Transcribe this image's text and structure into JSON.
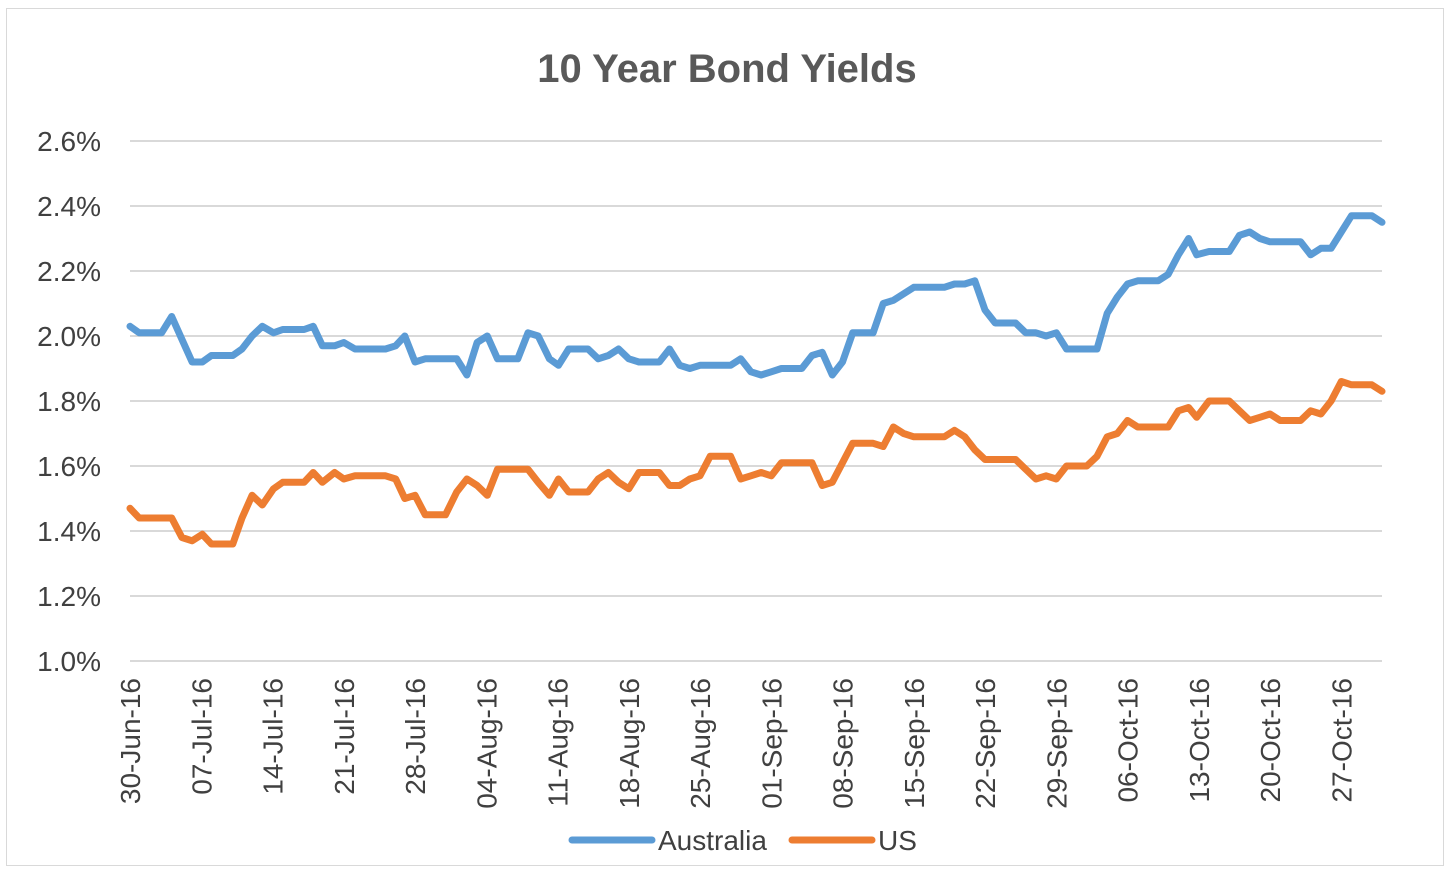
{
  "chart_data": {
    "type": "line",
    "title": "10 Year Bond Yields",
    "xlabel": "",
    "ylabel": "",
    "ylim": [
      1.0,
      2.6
    ],
    "y_ticks": [
      "1.0%",
      "1.2%",
      "1.4%",
      "1.6%",
      "1.8%",
      "2.0%",
      "2.2%",
      "2.4%",
      "2.6%"
    ],
    "y_tick_values": [
      1.0,
      1.2,
      1.4,
      1.6,
      1.8,
      2.0,
      2.2,
      2.4,
      2.6
    ],
    "x_ticks": [
      "30-Jun-16",
      "07-Jul-16",
      "14-Jul-16",
      "21-Jul-16",
      "28-Jul-16",
      "04-Aug-16",
      "11-Aug-16",
      "18-Aug-16",
      "25-Aug-16",
      "01-Sep-16",
      "08-Sep-16",
      "15-Sep-16",
      "22-Sep-16",
      "29-Sep-16",
      "06-Oct-16",
      "13-Oct-16",
      "20-Oct-16",
      "27-Oct-16"
    ],
    "x_tick_offsets_days": [
      0,
      7,
      14,
      21,
      28,
      35,
      42,
      49,
      56,
      63,
      70,
      77,
      84,
      91,
      98,
      105,
      112,
      119
    ],
    "x_range_days": [
      0,
      123
    ],
    "grid": true,
    "legend_position": "bottom",
    "series": [
      {
        "name": "Australia",
        "color": "#5b9bd5",
        "points": [
          [
            0,
            2.03
          ],
          [
            0.9,
            2.01
          ],
          [
            2.1,
            2.01
          ],
          [
            3.1,
            2.01
          ],
          [
            4.1,
            2.06
          ],
          [
            5.1,
            1.99
          ],
          [
            6.1,
            1.92
          ],
          [
            7.1,
            1.92
          ],
          [
            8.0,
            1.94
          ],
          [
            9.2,
            1.94
          ],
          [
            10.1,
            1.94
          ],
          [
            11.0,
            1.96
          ],
          [
            12.0,
            2.0
          ],
          [
            13.0,
            2.03
          ],
          [
            14.1,
            2.01
          ],
          [
            15.0,
            2.02
          ],
          [
            16.0,
            2.02
          ],
          [
            17.1,
            2.02
          ],
          [
            18.0,
            2.03
          ],
          [
            18.9,
            1.97
          ],
          [
            20.1,
            1.97
          ],
          [
            21.0,
            1.98
          ],
          [
            22.1,
            1.96
          ],
          [
            23.1,
            1.96
          ],
          [
            24.1,
            1.96
          ],
          [
            25.1,
            1.96
          ],
          [
            26.1,
            1.97
          ],
          [
            27.0,
            2.0
          ],
          [
            28.0,
            1.92
          ],
          [
            29.0,
            1.93
          ],
          [
            30.0,
            1.93
          ],
          [
            31.0,
            1.93
          ],
          [
            32.1,
            1.93
          ],
          [
            33.1,
            1.88
          ],
          [
            34.1,
            1.98
          ],
          [
            35.1,
            2.0
          ],
          [
            36.1,
            1.93
          ],
          [
            37.1,
            1.93
          ],
          [
            38.1,
            1.93
          ],
          [
            39.1,
            2.01
          ],
          [
            40.1,
            2.0
          ],
          [
            41.2,
            1.93
          ],
          [
            42.1,
            1.91
          ],
          [
            43.1,
            1.96
          ],
          [
            44.0,
            1.96
          ],
          [
            45.0,
            1.96
          ],
          [
            46.0,
            1.93
          ],
          [
            47.0,
            1.94
          ],
          [
            48.0,
            1.96
          ],
          [
            49.0,
            1.93
          ],
          [
            50.0,
            1.92
          ],
          [
            51.0,
            1.92
          ],
          [
            52.0,
            1.92
          ],
          [
            53.0,
            1.96
          ],
          [
            54.0,
            1.91
          ],
          [
            55.0,
            1.9
          ],
          [
            56.0,
            1.91
          ],
          [
            57.0,
            1.91
          ],
          [
            58.0,
            1.91
          ],
          [
            59.0,
            1.91
          ],
          [
            60.0,
            1.93
          ],
          [
            61.0,
            1.89
          ],
          [
            62.0,
            1.88
          ],
          [
            63.0,
            1.89
          ],
          [
            64.0,
            1.9
          ],
          [
            65.0,
            1.9
          ],
          [
            66.0,
            1.9
          ],
          [
            67.0,
            1.94
          ],
          [
            68.0,
            1.95
          ],
          [
            69.0,
            1.88
          ],
          [
            70.0,
            1.92
          ],
          [
            71.0,
            2.01
          ],
          [
            72.0,
            2.01
          ],
          [
            73.0,
            2.01
          ],
          [
            74.0,
            2.1
          ],
          [
            75.0,
            2.11
          ],
          [
            76.0,
            2.13
          ],
          [
            77.0,
            2.15
          ],
          [
            78.0,
            2.15
          ],
          [
            79.0,
            2.15
          ],
          [
            80.0,
            2.15
          ],
          [
            81.0,
            2.16
          ],
          [
            82.0,
            2.16
          ],
          [
            83.0,
            2.17
          ],
          [
            84.0,
            2.08
          ],
          [
            85.0,
            2.04
          ],
          [
            86.0,
            2.04
          ],
          [
            87.0,
            2.04
          ],
          [
            88.0,
            2.01
          ],
          [
            89.0,
            2.01
          ],
          [
            90.0,
            2.0
          ],
          [
            91.0,
            2.01
          ],
          [
            92.0,
            1.96
          ],
          [
            93.0,
            1.96
          ],
          [
            94.0,
            1.96
          ],
          [
            95.0,
            1.96
          ],
          [
            96.0,
            2.07
          ],
          [
            97.0,
            2.12
          ],
          [
            98.0,
            2.16
          ],
          [
            99.0,
            2.17
          ],
          [
            100.0,
            2.17
          ],
          [
            101.0,
            2.17
          ],
          [
            102.0,
            2.19
          ],
          [
            103.0,
            2.25
          ],
          [
            104.0,
            2.3
          ],
          [
            104.8,
            2.25
          ],
          [
            106.0,
            2.26
          ],
          [
            107.0,
            2.26
          ],
          [
            108.0,
            2.26
          ],
          [
            109.0,
            2.31
          ],
          [
            110.0,
            2.32
          ],
          [
            111.0,
            2.3
          ],
          [
            112.0,
            2.29
          ],
          [
            113.0,
            2.29
          ],
          [
            114.0,
            2.29
          ],
          [
            115.0,
            2.29
          ],
          [
            116.0,
            2.25
          ],
          [
            117.0,
            2.27
          ],
          [
            118.0,
            2.27
          ],
          [
            119.0,
            2.32
          ],
          [
            120.0,
            2.37
          ],
          [
            121.0,
            2.37
          ],
          [
            122.0,
            2.37
          ],
          [
            123.0,
            2.35
          ]
        ]
      },
      {
        "name": "US",
        "color": "#ed7d31",
        "points": [
          [
            0,
            1.47
          ],
          [
            0.9,
            1.44
          ],
          [
            2.1,
            1.44
          ],
          [
            3.1,
            1.44
          ],
          [
            4.1,
            1.44
          ],
          [
            5.1,
            1.38
          ],
          [
            6.1,
            1.37
          ],
          [
            7.1,
            1.39
          ],
          [
            8.0,
            1.36
          ],
          [
            9.2,
            1.36
          ],
          [
            10.1,
            1.36
          ],
          [
            11.0,
            1.44
          ],
          [
            12.0,
            1.51
          ],
          [
            13.0,
            1.48
          ],
          [
            14.1,
            1.53
          ],
          [
            15.0,
            1.55
          ],
          [
            16.0,
            1.55
          ],
          [
            17.1,
            1.55
          ],
          [
            18.0,
            1.58
          ],
          [
            18.9,
            1.55
          ],
          [
            20.1,
            1.58
          ],
          [
            21.0,
            1.56
          ],
          [
            22.1,
            1.57
          ],
          [
            23.1,
            1.57
          ],
          [
            24.1,
            1.57
          ],
          [
            25.1,
            1.57
          ],
          [
            26.1,
            1.56
          ],
          [
            27.0,
            1.5
          ],
          [
            28.0,
            1.51
          ],
          [
            29.0,
            1.45
          ],
          [
            30.0,
            1.45
          ],
          [
            31.0,
            1.45
          ],
          [
            32.1,
            1.52
          ],
          [
            33.1,
            1.56
          ],
          [
            34.1,
            1.54
          ],
          [
            35.1,
            1.51
          ],
          [
            36.1,
            1.59
          ],
          [
            37.1,
            1.59
          ],
          [
            38.1,
            1.59
          ],
          [
            39.1,
            1.59
          ],
          [
            40.1,
            1.55
          ],
          [
            41.2,
            1.51
          ],
          [
            42.1,
            1.56
          ],
          [
            43.1,
            1.52
          ],
          [
            44.0,
            1.52
          ],
          [
            45.0,
            1.52
          ],
          [
            46.0,
            1.56
          ],
          [
            47.0,
            1.58
          ],
          [
            48.0,
            1.55
          ],
          [
            49.0,
            1.53
          ],
          [
            50.0,
            1.58
          ],
          [
            51.0,
            1.58
          ],
          [
            52.0,
            1.58
          ],
          [
            53.0,
            1.54
          ],
          [
            54.0,
            1.54
          ],
          [
            55.0,
            1.56
          ],
          [
            56.0,
            1.57
          ],
          [
            57.0,
            1.63
          ],
          [
            58.0,
            1.63
          ],
          [
            59.0,
            1.63
          ],
          [
            60.0,
            1.56
          ],
          [
            61.0,
            1.57
          ],
          [
            62.0,
            1.58
          ],
          [
            63.0,
            1.57
          ],
          [
            64.0,
            1.61
          ],
          [
            65.0,
            1.61
          ],
          [
            66.0,
            1.61
          ],
          [
            67.0,
            1.61
          ],
          [
            68.0,
            1.54
          ],
          [
            69.0,
            1.55
          ],
          [
            70.0,
            1.61
          ],
          [
            71.0,
            1.67
          ],
          [
            72.0,
            1.67
          ],
          [
            73.0,
            1.67
          ],
          [
            74.0,
            1.66
          ],
          [
            75.0,
            1.72
          ],
          [
            76.0,
            1.7
          ],
          [
            77.0,
            1.69
          ],
          [
            78.0,
            1.69
          ],
          [
            79.0,
            1.69
          ],
          [
            80.0,
            1.69
          ],
          [
            81.0,
            1.71
          ],
          [
            82.0,
            1.69
          ],
          [
            83.0,
            1.65
          ],
          [
            84.0,
            1.62
          ],
          [
            85.0,
            1.62
          ],
          [
            86.0,
            1.62
          ],
          [
            87.0,
            1.62
          ],
          [
            88.0,
            1.59
          ],
          [
            89.0,
            1.56
          ],
          [
            90.0,
            1.57
          ],
          [
            91.0,
            1.56
          ],
          [
            92.0,
            1.6
          ],
          [
            93.0,
            1.6
          ],
          [
            94.0,
            1.6
          ],
          [
            95.0,
            1.63
          ],
          [
            96.0,
            1.69
          ],
          [
            97.0,
            1.7
          ],
          [
            98.0,
            1.74
          ],
          [
            99.0,
            1.72
          ],
          [
            100.0,
            1.72
          ],
          [
            101.0,
            1.72
          ],
          [
            102.0,
            1.72
          ],
          [
            103.0,
            1.77
          ],
          [
            104.0,
            1.78
          ],
          [
            104.8,
            1.75
          ],
          [
            106.0,
            1.8
          ],
          [
            107.0,
            1.8
          ],
          [
            108.0,
            1.8
          ],
          [
            109.0,
            1.77
          ],
          [
            110.0,
            1.74
          ],
          [
            111.0,
            1.75
          ],
          [
            112.0,
            1.76
          ],
          [
            113.0,
            1.74
          ],
          [
            114.0,
            1.74
          ],
          [
            115.0,
            1.74
          ],
          [
            116.0,
            1.77
          ],
          [
            117.0,
            1.76
          ],
          [
            118.0,
            1.8
          ],
          [
            119.0,
            1.86
          ],
          [
            120.0,
            1.85
          ],
          [
            121.0,
            1.85
          ],
          [
            122.0,
            1.85
          ],
          [
            123.0,
            1.83
          ]
        ]
      }
    ]
  },
  "colors": {
    "gridline": "#d9d9d9",
    "frame_border": "#d9d9d9",
    "title": "#595959",
    "text": "#404040"
  }
}
